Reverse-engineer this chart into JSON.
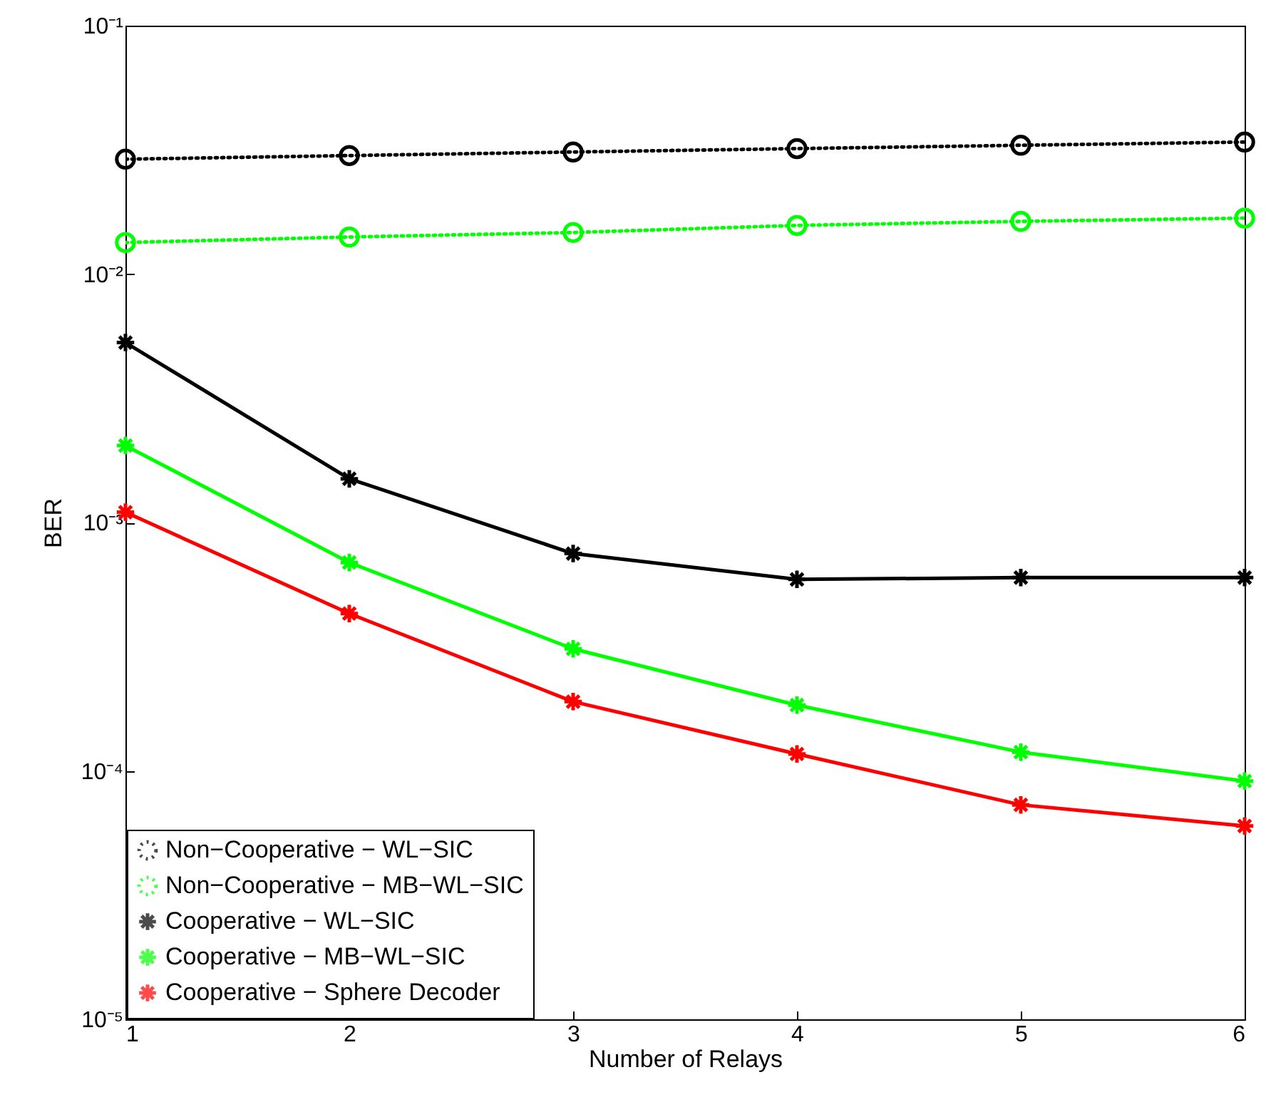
{
  "chart_data": {
    "type": "line",
    "xlabel": "Number of Relays",
    "ylabel": "BER",
    "x": [
      1,
      2,
      3,
      4,
      5,
      6
    ],
    "xlim": [
      1,
      6
    ],
    "xticks": [
      1,
      2,
      3,
      4,
      5,
      6
    ],
    "log": "y",
    "ylim": [
      1e-05,
      0.1
    ],
    "yticks": [
      {
        "value": 1e-05,
        "label": "10⁻⁵"
      },
      {
        "value": 0.0001,
        "label": "10⁻⁴"
      },
      {
        "value": 0.001,
        "label": "10⁻³"
      },
      {
        "value": 0.01,
        "label": "10⁻²"
      },
      {
        "value": 0.1,
        "label": "10⁻¹"
      }
    ],
    "grid": false,
    "legend": "bottom left",
    "series": [
      {
        "name": "Non−Cooperative − WL−SIC",
        "color": "#000000",
        "marker": "circle",
        "line_style": "dotted",
        "values": [
          0.029,
          0.03,
          0.031,
          0.032,
          0.033,
          0.034
        ]
      },
      {
        "name": "Non−Cooperative − MB−WL−SIC",
        "color": "#00ff00",
        "marker": "circle",
        "line_style": "dotted",
        "values": [
          0.0134,
          0.0141,
          0.0147,
          0.0157,
          0.0163,
          0.0168
        ]
      },
      {
        "name": "Cooperative − WL−SIC",
        "color": "#000000",
        "marker": "cross",
        "line_style": "solid",
        "values": [
          0.0053,
          0.0015,
          0.00075,
          0.00059,
          0.0006,
          0.0006
        ]
      },
      {
        "name": "Cooperative − MB−WL−SIC",
        "color": "#00ff00",
        "marker": "cross",
        "line_style": "solid",
        "values": [
          0.00204,
          0.00069,
          0.00031,
          0.000184,
          0.000119,
          9.1e-05
        ]
      },
      {
        "name": "Cooperative − Sphere Decoder",
        "color": "#ff0000",
        "marker": "cross",
        "line_style": "solid",
        "values": [
          0.0011,
          0.00043,
          0.00019,
          0.000117,
          7.3e-05,
          6e-05
        ]
      }
    ]
  }
}
